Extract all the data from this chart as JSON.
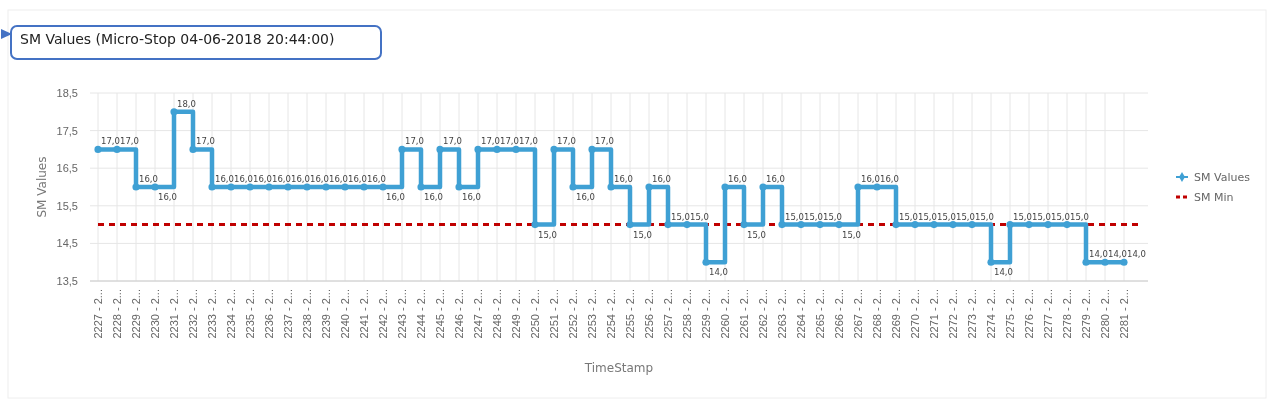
{
  "chart_data": {
    "type": "step",
    "title": "SM Values (Micro-Stop 04-06-2018 20:44:00)",
    "xlabel": "TimeStamp",
    "ylabel": "SM Values",
    "categories": [
      "2227 - 2...",
      "2228 - 2...",
      "2229 - 2...",
      "2230 - 2...",
      "2231 - 2...",
      "2232 - 2...",
      "2233 - 2...",
      "2234 - 2...",
      "2235 - 2...",
      "2236 - 2...",
      "2237 - 2...",
      "2238 - 2...",
      "2239 - 2...",
      "2240 - 2...",
      "2241 - 2...",
      "2242 - 2...",
      "2243 - 2...",
      "2244 - 2...",
      "2245 - 2...",
      "2246 - 2...",
      "2247 - 2...",
      "2248 - 2...",
      "2249 - 2...",
      "2250 - 2...",
      "2251 - 2...",
      "2252 - 2...",
      "2253 - 2...",
      "2254 - 2...",
      "2255 - 2...",
      "2256 - 2...",
      "2257 - 2...",
      "2258 - 2...",
      "2259 - 2...",
      "2260 - 2...",
      "2261 - 2...",
      "2262 - 2...",
      "2263 - 2...",
      "2264 - 2...",
      "2265 - 2...",
      "2266 - 2...",
      "2267 - 2...",
      "2268 - 2...",
      "2269 - 2...",
      "2270 - 2...",
      "2271 - 2...",
      "2272 - 2...",
      "2273 - 2...",
      "2274 - 2...",
      "2275 - 2...",
      "2276 - 2...",
      "2277 - 2...",
      "2278 - 2...",
      "2279 - 2...",
      "2280 - 2...",
      "2281 - 2..."
    ],
    "series": [
      {
        "name": "SM Values",
        "color": "#3fa0d4",
        "values": [
          17,
          17,
          16,
          16,
          18,
          17,
          16,
          16,
          16,
          16,
          16,
          16,
          16,
          16,
          16,
          16,
          17,
          16,
          17,
          16,
          17,
          17,
          17,
          15,
          17,
          16,
          17,
          16,
          15,
          16,
          15,
          15,
          14,
          16,
          15,
          16,
          15,
          15,
          15,
          15,
          16,
          16,
          15,
          15,
          15,
          15,
          15,
          14,
          15,
          15,
          15,
          15,
          14,
          14,
          14
        ],
        "value_labels": [
          "17,0",
          "17,0",
          "16,0",
          "16,0",
          "18,0",
          "17,0",
          "16,0",
          "16,0",
          "16,0",
          "16,0",
          "16,0",
          "16,0",
          "16,0",
          "16,0",
          "16,0",
          "16,0",
          "17,0",
          "16,0",
          "17,0",
          "16,0",
          "17,0",
          "17,0",
          "17,0",
          "15,0",
          "17,0",
          "16,0",
          "17,0",
          "16,0",
          "15,0",
          "16,0",
          "15,0",
          "15,0",
          "14,0",
          "16,0",
          "15,0",
          "16,0",
          "15,0",
          "15,0",
          "15,0",
          "15,0",
          "16,0",
          "16,0",
          "15,0",
          "15,0",
          "15,0",
          "15,0",
          "15,0",
          "14,0",
          "15,0",
          "15,0",
          "15,0",
          "15,0",
          "14,0",
          "14,0",
          "14,0"
        ]
      }
    ],
    "ref_lines": [
      {
        "axis": "y",
        "value": 15,
        "label": "SM Min",
        "color": "#c00000",
        "line_style": "dashed"
      }
    ],
    "ylim": [
      13.5,
      18.5
    ],
    "yticks": [
      {
        "value": 13.5,
        "label": "13,5"
      },
      {
        "value": 14.5,
        "label": "14,5"
      },
      {
        "value": 15.5,
        "label": "15,5"
      },
      {
        "value": 16.5,
        "label": "16,5"
      },
      {
        "value": 17.5,
        "label": "17,5"
      },
      {
        "value": 18.5,
        "label": "18,5"
      }
    ],
    "grid": true,
    "legend": "right",
    "marker": "circle",
    "line_style": "solid"
  }
}
